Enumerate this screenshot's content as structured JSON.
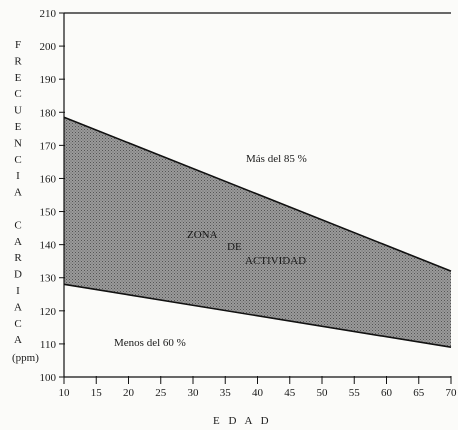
{
  "chart_data": {
    "type": "area",
    "title": "",
    "xlabel": "E D A D",
    "ylabel": "FRECUENCIA CARDIACA",
    "ylabel_letters": [
      "F",
      "R",
      "E",
      "C",
      "U",
      "E",
      "N",
      "C",
      "I",
      "A",
      "",
      "C",
      "A",
      "R",
      "D",
      "I",
      "A",
      "C",
      "A"
    ],
    "y_unit_label": "(ppm)",
    "xlim": [
      10,
      70
    ],
    "ylim": [
      100,
      210
    ],
    "x_ticks": [
      "10",
      "15",
      "20",
      "25",
      "30",
      "35",
      "40",
      "45",
      "50",
      "55",
      "60",
      "65",
      "70"
    ],
    "y_ticks": [
      "100",
      "110",
      "120",
      "130",
      "140",
      "150",
      "160",
      "170",
      "180",
      "190",
      "200",
      "210"
    ],
    "x": [
      10,
      70
    ],
    "series": [
      {
        "values": [
          178.5,
          132
        ]
      },
      {
        "values": [
          128,
          109
        ]
      }
    ],
    "grid": false,
    "annotations": {
      "upper": "Más del 85 %",
      "zone_line1": "ZONA",
      "zone_line2": "DE",
      "zone_line3": "ACTIVIDAD",
      "lower": "Menos del 60 %"
    },
    "colors": {
      "band_fill": "#8e8e8e",
      "line": "#111111",
      "background": "#fbfbf9"
    }
  }
}
